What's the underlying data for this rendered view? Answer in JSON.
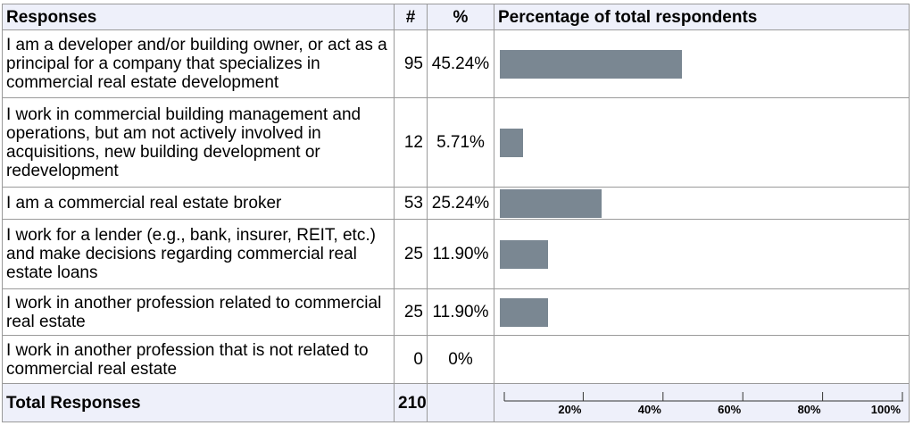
{
  "table": {
    "headers": {
      "responses": "Responses",
      "count": "#",
      "percent": "%",
      "chart": "Percentage of total respondents"
    },
    "total_label": "Total Responses",
    "total_count": "210"
  },
  "chart_data": {
    "type": "bar",
    "title": "Percentage of total respondents",
    "categories": [
      "I am a developer and/or building owner, or act as a principal for a company that specializes in commercial real estate development",
      "I work in commercial building management and operations, but am not actively involved in acquisitions, new building development or redevelopment",
      "I am a commercial real estate broker",
      "I work for a lender (e.g., bank, insurer, REIT, etc.) and make decisions regarding commercial real estate loans",
      "I work in another profession related to commercial real estate",
      "I work in another profession that is not related to commercial real estate"
    ],
    "counts": [
      "95",
      "12",
      "53",
      "25",
      "25",
      "0"
    ],
    "percent_labels": [
      "45.24%",
      "5.71%",
      "25.24%",
      "11.90%",
      "11.90%",
      "0%"
    ],
    "values": [
      45.24,
      5.71,
      25.24,
      11.9,
      11.9,
      0
    ],
    "xlim": [
      0,
      100
    ],
    "tick_labels": [
      "20%",
      "40%",
      "60%",
      "80%",
      "100%"
    ],
    "tick_values": [
      20,
      40,
      60,
      80,
      100
    ],
    "bar_color": "#7a8792"
  }
}
